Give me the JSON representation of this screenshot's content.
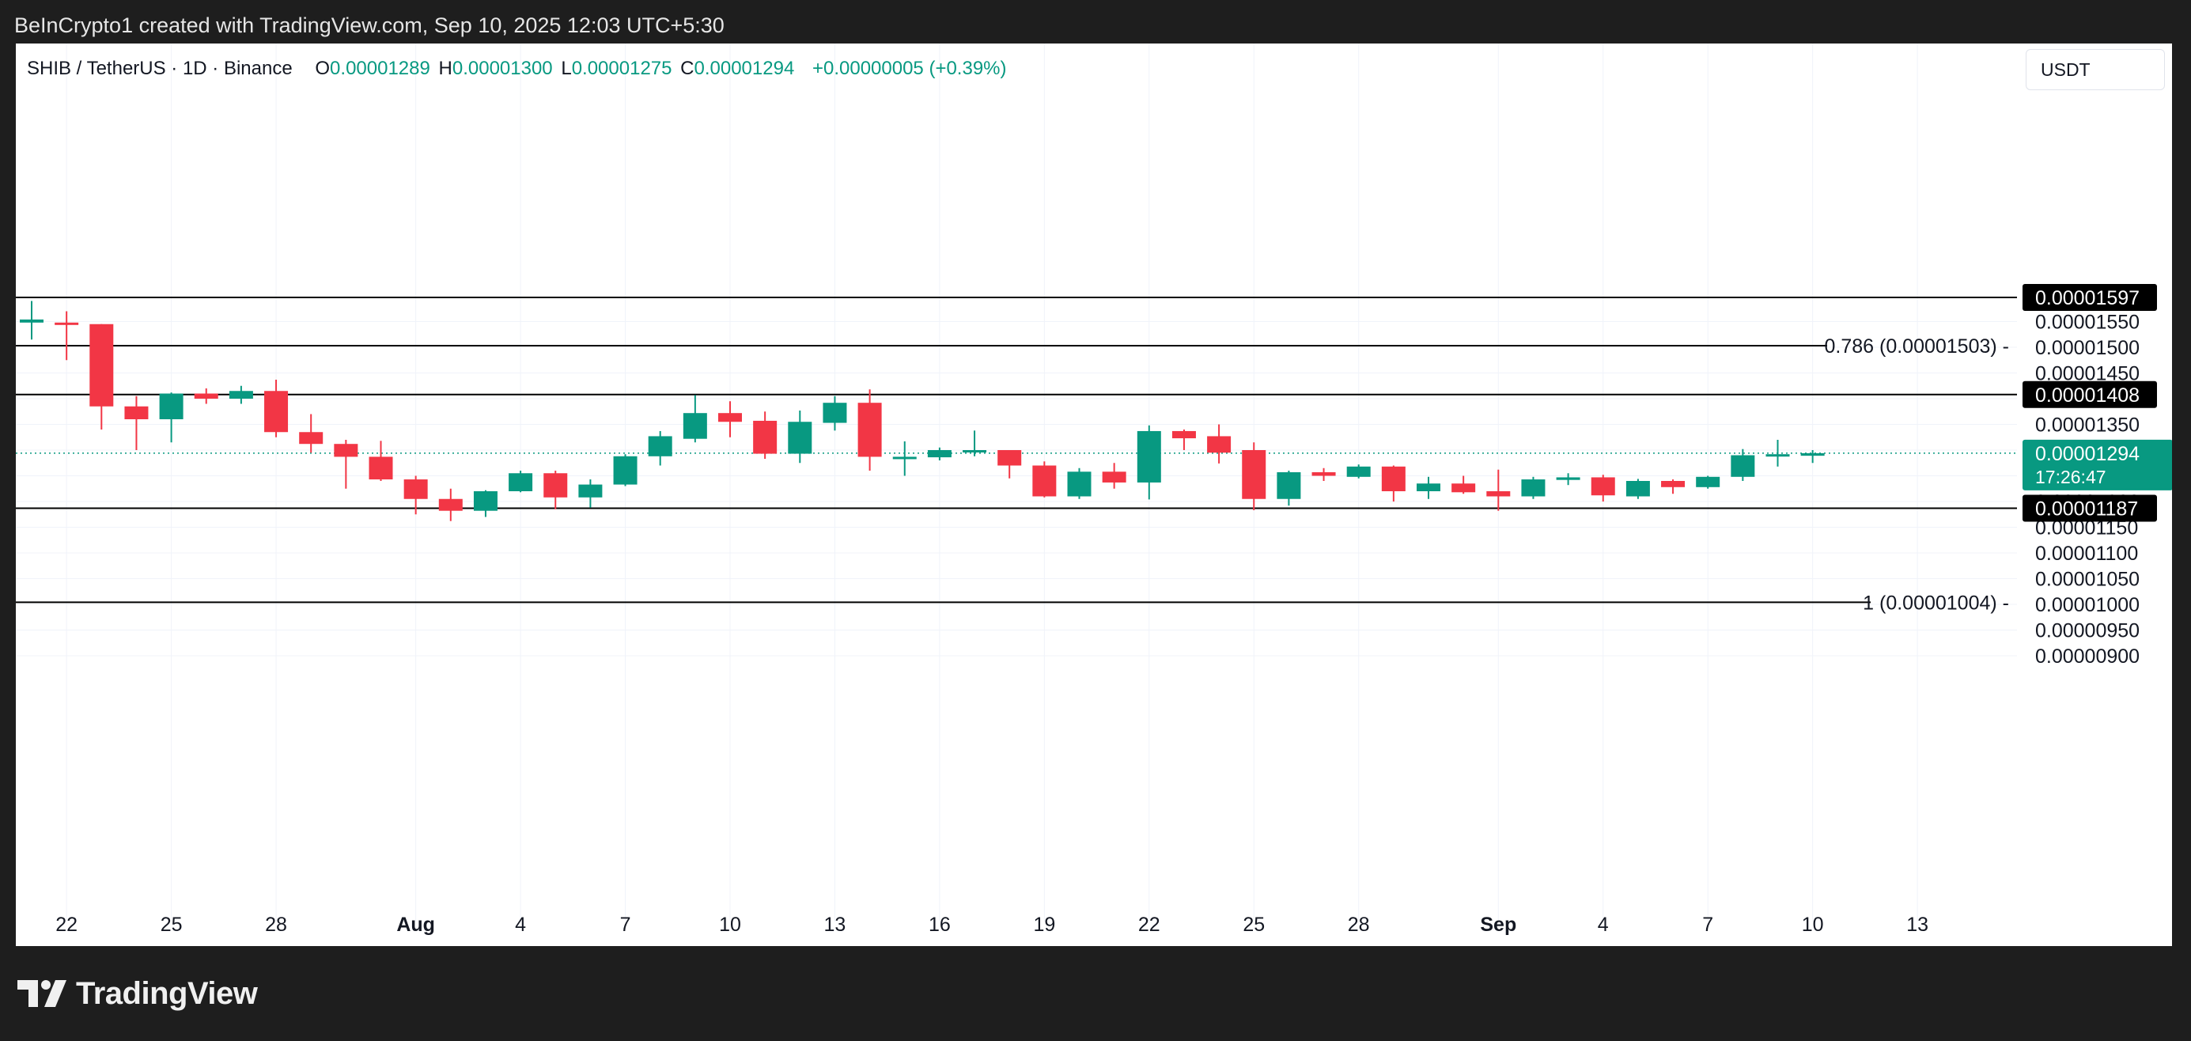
{
  "header": {
    "attribution": "BeInCrypto1 created with TradingView.com, Sep 10, 2025 12:03 UTC+5:30"
  },
  "legend": {
    "symbol": "SHIB / TetherUS · 1D · Binance",
    "o_label": "O",
    "o_value": "0.00001289",
    "h_label": "H",
    "h_value": "0.00001300",
    "l_label": "L",
    "l_value": "0.00001275",
    "c_label": "C",
    "c_value": "0.00001294",
    "change": "+0.00000005 (+0.39%)"
  },
  "currency_button": "USDT",
  "brand": "TradingView",
  "colors": {
    "up": "#089981",
    "down": "#f23645",
    "grid": "#f0f3fa",
    "level_line": "#000000",
    "background": "#ffffff"
  },
  "chart_data": {
    "type": "candlestick",
    "y_axis": {
      "min": 8.5e-06,
      "max": 1.63e-05,
      "ticks": [
        9e-06,
        9.5e-06,
        1e-05,
        1.05e-05,
        1.1e-05,
        1.15e-05,
        1.2e-05,
        1.25e-05,
        1.3e-05,
        1.35e-05,
        1.4e-05,
        1.45e-05,
        1.5e-05,
        1.55e-05
      ],
      "tick_labels": [
        "0.00000900",
        "0.00000950",
        "0.00001000",
        "0.00001050",
        "0.00001100",
        "0.00001150",
        "0.00001200",
        "0.00001250",
        "0.00001300",
        "0.00001350",
        "0.00001400",
        "0.00001450",
        "0.00001500",
        "0.00001550"
      ]
    },
    "x_axis": {
      "labels": [
        {
          "day": 1,
          "text": "22",
          "bold": false
        },
        {
          "day": 4,
          "text": "25",
          "bold": false
        },
        {
          "day": 7,
          "text": "28",
          "bold": false
        },
        {
          "day": 11,
          "text": "Aug",
          "bold": true
        },
        {
          "day": 14,
          "text": "4",
          "bold": false
        },
        {
          "day": 17,
          "text": "7",
          "bold": false
        },
        {
          "day": 20,
          "text": "10",
          "bold": false
        },
        {
          "day": 23,
          "text": "13",
          "bold": false
        },
        {
          "day": 26,
          "text": "16",
          "bold": false
        },
        {
          "day": 29,
          "text": "19",
          "bold": false
        },
        {
          "day": 32,
          "text": "22",
          "bold": false
        },
        {
          "day": 35,
          "text": "25",
          "bold": false
        },
        {
          "day": 38,
          "text": "28",
          "bold": false
        },
        {
          "day": 42,
          "text": "Sep",
          "bold": true
        },
        {
          "day": 45,
          "text": "4",
          "bold": false
        },
        {
          "day": 48,
          "text": "7",
          "bold": false
        },
        {
          "day": 51,
          "text": "10",
          "bold": false
        },
        {
          "day": 54,
          "text": "13",
          "bold": false
        }
      ]
    },
    "candles": [
      {
        "o": 1.548e-05,
        "h": 1.59e-05,
        "l": 1.515e-05,
        "c": 1.554e-05
      },
      {
        "o": 1.548e-05,
        "h": 1.57e-05,
        "l": 1.475e-05,
        "c": 1.546e-05
      },
      {
        "o": 1.545e-05,
        "h": 1.545e-05,
        "l": 1.34e-05,
        "c": 1.385e-05
      },
      {
        "o": 1.385e-05,
        "h": 1.405e-05,
        "l": 1.3e-05,
        "c": 1.36e-05
      },
      {
        "o": 1.36e-05,
        "h": 1.412e-05,
        "l": 1.315e-05,
        "c": 1.41e-05
      },
      {
        "o": 1.41e-05,
        "h": 1.42e-05,
        "l": 1.39e-05,
        "c": 1.4e-05
      },
      {
        "o": 1.4e-05,
        "h": 1.425e-05,
        "l": 1.39e-05,
        "c": 1.415e-05
      },
      {
        "o": 1.415e-05,
        "h": 1.437e-05,
        "l": 1.325e-05,
        "c": 1.335e-05
      },
      {
        "o": 1.335e-05,
        "h": 1.37e-05,
        "l": 1.295e-05,
        "c": 1.312e-05
      },
      {
        "o": 1.312e-05,
        "h": 1.32e-05,
        "l": 1.225e-05,
        "c": 1.287e-05
      },
      {
        "o": 1.287e-05,
        "h": 1.318e-05,
        "l": 1.24e-05,
        "c": 1.243e-05
      },
      {
        "o": 1.243e-05,
        "h": 1.25e-05,
        "l": 1.175e-05,
        "c": 1.205e-05
      },
      {
        "o": 1.205e-05,
        "h": 1.225e-05,
        "l": 1.162e-05,
        "c": 1.182e-05
      },
      {
        "o": 1.182e-05,
        "h": 1.222e-05,
        "l": 1.17e-05,
        "c": 1.22e-05
      },
      {
        "o": 1.22e-05,
        "h": 1.26e-05,
        "l": 1.218e-05,
        "c": 1.255e-05
      },
      {
        "o": 1.255e-05,
        "h": 1.26e-05,
        "l": 1.185e-05,
        "c": 1.208e-05
      },
      {
        "o": 1.208e-05,
        "h": 1.243e-05,
        "l": 1.188e-05,
        "c": 1.233e-05
      },
      {
        "o": 1.233e-05,
        "h": 1.292e-05,
        "l": 1.23e-05,
        "c": 1.288e-05
      },
      {
        "o": 1.288e-05,
        "h": 1.337e-05,
        "l": 1.27e-05,
        "c": 1.327e-05
      },
      {
        "o": 1.322e-05,
        "h": 1.407e-05,
        "l": 1.315e-05,
        "c": 1.372e-05
      },
      {
        "o": 1.372e-05,
        "h": 1.395e-05,
        "l": 1.325e-05,
        "c": 1.355e-05
      },
      {
        "o": 1.357e-05,
        "h": 1.375e-05,
        "l": 1.283e-05,
        "c": 1.293e-05
      },
      {
        "o": 1.293e-05,
        "h": 1.377e-05,
        "l": 1.275e-05,
        "c": 1.355e-05
      },
      {
        "o": 1.353e-05,
        "h": 1.405e-05,
        "l": 1.338e-05,
        "c": 1.392e-05
      },
      {
        "o": 1.392e-05,
        "h": 1.418e-05,
        "l": 1.26e-05,
        "c": 1.287e-05
      },
      {
        "o": 1.287e-05,
        "h": 1.317e-05,
        "l": 1.25e-05,
        "c": 1.287e-05
      },
      {
        "o": 1.286e-05,
        "h": 1.305e-05,
        "l": 1.28e-05,
        "c": 1.3e-05
      },
      {
        "o": 1.298e-05,
        "h": 1.338e-05,
        "l": 1.288e-05,
        "c": 1.3e-05
      },
      {
        "o": 1.3e-05,
        "h": 1.3e-05,
        "l": 1.245e-05,
        "c": 1.27e-05
      },
      {
        "o": 1.27e-05,
        "h": 1.278e-05,
        "l": 1.208e-05,
        "c": 1.21e-05
      },
      {
        "o": 1.21e-05,
        "h": 1.265e-05,
        "l": 1.205e-05,
        "c": 1.258e-05
      },
      {
        "o": 1.258e-05,
        "h": 1.275e-05,
        "l": 1.225e-05,
        "c": 1.237e-05
      },
      {
        "o": 1.237e-05,
        "h": 1.348e-05,
        "l": 1.204e-05,
        "c": 1.337e-05
      },
      {
        "o": 1.337e-05,
        "h": 1.34e-05,
        "l": 1.3e-05,
        "c": 1.323e-05
      },
      {
        "o": 1.327e-05,
        "h": 1.35e-05,
        "l": 1.274e-05,
        "c": 1.295e-05
      },
      {
        "o": 1.3e-05,
        "h": 1.315e-05,
        "l": 1.183e-05,
        "c": 1.205e-05
      },
      {
        "o": 1.205e-05,
        "h": 1.26e-05,
        "l": 1.192e-05,
        "c": 1.257e-05
      },
      {
        "o": 1.257e-05,
        "h": 1.265e-05,
        "l": 1.24e-05,
        "c": 1.25e-05
      },
      {
        "o": 1.248e-05,
        "h": 1.272e-05,
        "l": 1.245e-05,
        "c": 1.268e-05
      },
      {
        "o": 1.268e-05,
        "h": 1.27e-05,
        "l": 1.2e-05,
        "c": 1.22e-05
      },
      {
        "o": 1.22e-05,
        "h": 1.248e-05,
        "l": 1.205e-05,
        "c": 1.235e-05
      },
      {
        "o": 1.235e-05,
        "h": 1.25e-05,
        "l": 1.215e-05,
        "c": 1.218e-05
      },
      {
        "o": 1.22e-05,
        "h": 1.262e-05,
        "l": 1.182e-05,
        "c": 1.21e-05
      },
      {
        "o": 1.21e-05,
        "h": 1.248e-05,
        "l": 1.205e-05,
        "c": 1.243e-05
      },
      {
        "o": 1.242e-05,
        "h": 1.255e-05,
        "l": 1.232e-05,
        "c": 1.247e-05
      },
      {
        "o": 1.247e-05,
        "h": 1.252e-05,
        "l": 1.2e-05,
        "c": 1.212e-05
      },
      {
        "o": 1.21e-05,
        "h": 1.244e-05,
        "l": 1.205e-05,
        "c": 1.24e-05
      },
      {
        "o": 1.24e-05,
        "h": 1.243e-05,
        "l": 1.215e-05,
        "c": 1.228e-05
      },
      {
        "o": 1.228e-05,
        "h": 1.25e-05,
        "l": 1.225e-05,
        "c": 1.248e-05
      },
      {
        "o": 1.248e-05,
        "h": 1.302e-05,
        "l": 1.24e-05,
        "c": 1.29e-05
      },
      {
        "o": 1.29e-05,
        "h": 1.32e-05,
        "l": 1.268e-05,
        "c": 1.292e-05
      },
      {
        "o": 1.289e-05,
        "h": 1.3e-05,
        "l": 1.275e-05,
        "c": 1.294e-05
      }
    ],
    "horizontal_levels": [
      {
        "value": 1.597e-05,
        "label": "0.00001597",
        "fib": ""
      },
      {
        "value": 1.503e-05,
        "label": "",
        "fib": "0.786 (0.00001503)"
      },
      {
        "value": 1.408e-05,
        "label": "0.00001408",
        "fib": ""
      },
      {
        "value": 1.187e-05,
        "label": "0.00001187",
        "fib": ""
      },
      {
        "value": 1.004e-05,
        "label": "",
        "fib": "1 (0.00001004)"
      }
    ],
    "last_price": {
      "value": 1.294e-05,
      "label": "0.00001294",
      "countdown": "17:26:47"
    }
  }
}
